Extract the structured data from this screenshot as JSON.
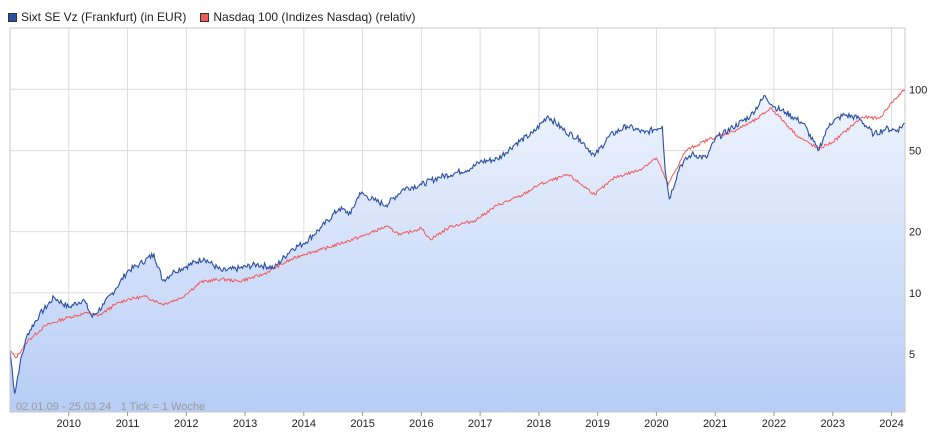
{
  "legend": [
    {
      "label": "Sixt SE Vz (Frankfurt) (in EUR)",
      "color": "#2b4fa3"
    },
    {
      "label": "Nasdaq 100 (Indizes Nasdaq) (relativ)",
      "color": "#f05a5a"
    }
  ],
  "footer_text": "02.01.09 - 25.03.24   1 Tick = 1 Woche",
  "chart_data": {
    "type": "line",
    "y_scale": "log",
    "ylim": [
      2.6,
      200
    ],
    "xlim": [
      2009.0,
      2024.23
    ],
    "x_ticks": [
      "2010",
      "2011",
      "2012",
      "2013",
      "2014",
      "2015",
      "2016",
      "2017",
      "2018",
      "2019",
      "2020",
      "2021",
      "2022",
      "2023",
      "2024"
    ],
    "y_ticks": [
      5,
      10,
      20,
      50,
      100
    ],
    "grid": true,
    "series": [
      {
        "name": "Sixt SE Vz (Frankfurt) (in EUR)",
        "color": "#2b4fa3",
        "fill": "area-gradient",
        "points": [
          [
            2009.0,
            5.2
          ],
          [
            2009.08,
            3.2
          ],
          [
            2009.17,
            4.5
          ],
          [
            2009.3,
            6.3
          ],
          [
            2009.5,
            7.8
          ],
          [
            2009.75,
            9.5
          ],
          [
            2010.0,
            8.5
          ],
          [
            2010.25,
            9.3
          ],
          [
            2010.4,
            7.6
          ],
          [
            2010.6,
            8.8
          ],
          [
            2010.8,
            10.5
          ],
          [
            2011.0,
            12.8
          ],
          [
            2011.2,
            13.8
          ],
          [
            2011.45,
            15.5
          ],
          [
            2011.6,
            11.5
          ],
          [
            2011.8,
            12.8
          ],
          [
            2012.0,
            13.5
          ],
          [
            2012.3,
            14.8
          ],
          [
            2012.6,
            12.8
          ],
          [
            2012.9,
            13.2
          ],
          [
            2013.2,
            13.8
          ],
          [
            2013.5,
            13.3
          ],
          [
            2013.8,
            16.5
          ],
          [
            2014.0,
            17.5
          ],
          [
            2014.3,
            21.0
          ],
          [
            2014.6,
            26.0
          ],
          [
            2014.8,
            24.5
          ],
          [
            2014.95,
            31.0
          ],
          [
            2015.2,
            28.5
          ],
          [
            2015.4,
            27.0
          ],
          [
            2015.7,
            32.5
          ],
          [
            2016.0,
            34.0
          ],
          [
            2016.3,
            37.0
          ],
          [
            2016.6,
            39.0
          ],
          [
            2016.85,
            41.0
          ],
          [
            2017.0,
            44.0
          ],
          [
            2017.3,
            45.5
          ],
          [
            2017.6,
            54.0
          ],
          [
            2017.9,
            61.0
          ],
          [
            2018.15,
            74.0
          ],
          [
            2018.45,
            62.0
          ],
          [
            2018.7,
            57.0
          ],
          [
            2018.95,
            47.0
          ],
          [
            2019.2,
            59.0
          ],
          [
            2019.5,
            66.0
          ],
          [
            2019.8,
            61.0
          ],
          [
            2020.1,
            66.0
          ],
          [
            2020.15,
            40.0
          ],
          [
            2020.22,
            29.0
          ],
          [
            2020.4,
            42.0
          ],
          [
            2020.6,
            48.0
          ],
          [
            2020.85,
            46.0
          ],
          [
            2021.0,
            57.0
          ],
          [
            2021.3,
            65.0
          ],
          [
            2021.6,
            74.0
          ],
          [
            2021.85,
            93.0
          ],
          [
            2022.0,
            82.0
          ],
          [
            2022.2,
            77.0
          ],
          [
            2022.5,
            68.0
          ],
          [
            2022.75,
            50.0
          ],
          [
            2022.95,
            68.0
          ],
          [
            2023.2,
            75.0
          ],
          [
            2023.45,
            72.0
          ],
          [
            2023.7,
            60.0
          ],
          [
            2023.9,
            64.0
          ],
          [
            2024.1,
            63.0
          ],
          [
            2024.23,
            68.0
          ]
        ]
      },
      {
        "name": "Nasdaq 100 (Indizes Nasdaq) (relativ)",
        "color": "#f05a5a",
        "points": [
          [
            2009.0,
            5.2
          ],
          [
            2009.1,
            4.8
          ],
          [
            2009.3,
            5.8
          ],
          [
            2009.6,
            6.9
          ],
          [
            2010.0,
            7.6
          ],
          [
            2010.35,
            8.0
          ],
          [
            2010.5,
            7.7
          ],
          [
            2010.8,
            8.8
          ],
          [
            2011.0,
            9.3
          ],
          [
            2011.3,
            9.6
          ],
          [
            2011.6,
            8.8
          ],
          [
            2011.9,
            9.4
          ],
          [
            2012.25,
            11.3
          ],
          [
            2012.6,
            11.7
          ],
          [
            2012.9,
            11.4
          ],
          [
            2013.3,
            12.3
          ],
          [
            2013.7,
            14.2
          ],
          [
            2014.0,
            15.5
          ],
          [
            2014.3,
            16.3
          ],
          [
            2014.7,
            17.8
          ],
          [
            2015.0,
            19.0
          ],
          [
            2015.4,
            21.2
          ],
          [
            2015.65,
            19.3
          ],
          [
            2016.0,
            20.8
          ],
          [
            2016.15,
            18.3
          ],
          [
            2016.5,
            21.2
          ],
          [
            2016.9,
            22.6
          ],
          [
            2017.3,
            27.0
          ],
          [
            2017.7,
            30.0
          ],
          [
            2018.0,
            34.0
          ],
          [
            2018.5,
            38.0
          ],
          [
            2018.95,
            30.5
          ],
          [
            2019.3,
            37.0
          ],
          [
            2019.7,
            40.0
          ],
          [
            2020.0,
            46.0
          ],
          [
            2020.2,
            34.0
          ],
          [
            2020.5,
            50.0
          ],
          [
            2020.9,
            57.0
          ],
          [
            2021.3,
            62.0
          ],
          [
            2021.7,
            71.0
          ],
          [
            2021.95,
            81.0
          ],
          [
            2022.4,
            59.0
          ],
          [
            2022.75,
            51.0
          ],
          [
            2023.0,
            55.0
          ],
          [
            2023.5,
            73.0
          ],
          [
            2023.8,
            72.0
          ],
          [
            2024.0,
            86.0
          ],
          [
            2024.23,
            100.0
          ]
        ]
      }
    ]
  }
}
